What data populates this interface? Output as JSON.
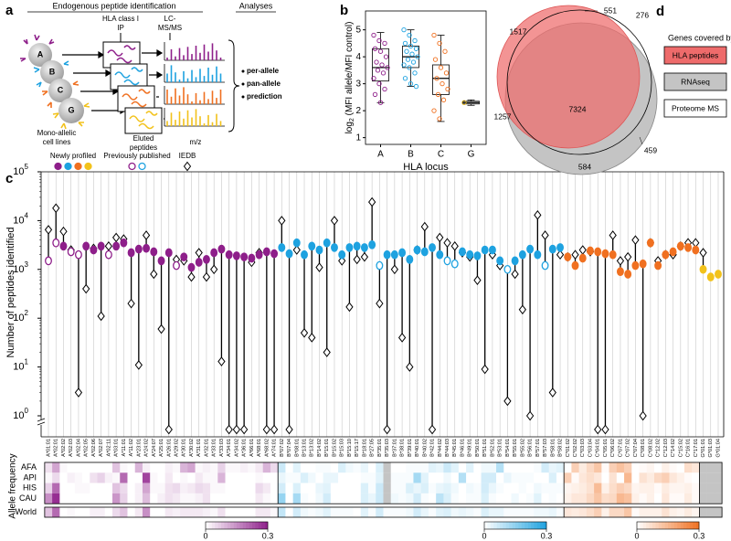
{
  "panel_labels": [
    "a",
    "b",
    "c",
    "d"
  ],
  "diagram": {
    "title": "Endogenous peptide identification",
    "analyses": "Analyses",
    "ip": [
      "HLA class I",
      "IP"
    ],
    "ms": [
      "LC-",
      "MS/MS"
    ],
    "cells": [
      "A",
      "B",
      "C",
      "G"
    ],
    "cell_lines": [
      "Mono-allelic",
      "cell lines"
    ],
    "eluted": [
      "Eluted",
      "peptides"
    ],
    "mz": "m/z",
    "bullets": [
      "per-allele",
      "pan-allele",
      "prediction"
    ]
  },
  "chart_data": [
    {
      "type": "box",
      "x_label": "HLA locus",
      "y_label": {
        "prefix": "log",
        "sub": "2",
        "rest": " (MFI allele/MFI control)"
      },
      "categories": [
        "A",
        "B",
        "C",
        "G"
      ],
      "colors": [
        "#8e1f8a",
        "#1ea2e0",
        "#f07020",
        "#e0b010"
      ],
      "boxes": [
        {
          "min": 2.3,
          "q1": 3.1,
          "median": 3.6,
          "q3": 4.3,
          "max": 4.9
        },
        {
          "min": 2.9,
          "q1": 3.6,
          "median": 4.0,
          "q3": 4.4,
          "max": 5.0
        },
        {
          "min": 1.6,
          "q1": 2.6,
          "median": 3.2,
          "q3": 3.7,
          "max": 4.8
        },
        {
          "min": 2.2,
          "q1": 2.25,
          "median": 2.3,
          "q3": 2.35,
          "max": 2.4
        }
      ],
      "points": [
        [
          4.8,
          4.6,
          4.5,
          4.3,
          4.2,
          4.0,
          3.8,
          3.7,
          3.6,
          3.5,
          3.4,
          3.2,
          3.0,
          2.8,
          2.6,
          2.3
        ],
        [
          5.0,
          4.8,
          4.6,
          4.5,
          4.4,
          4.3,
          4.2,
          4.1,
          4.0,
          3.9,
          3.8,
          3.7,
          3.6,
          3.4,
          3.2,
          3.0,
          2.9
        ],
        [
          4.8,
          4.5,
          4.2,
          3.9,
          3.6,
          3.4,
          3.2,
          3.0,
          2.8,
          2.6,
          2.4,
          2.0,
          1.7
        ],
        [
          2.3
        ]
      ],
      "ylim": [
        0.75,
        5.7
      ],
      "yticks": [
        1,
        2,
        3,
        4,
        5
      ]
    },
    {
      "type": "dot",
      "y_label": "Number of peptides identified",
      "log_scale": true,
      "locus_colors": {
        "A": "#8e1f8a",
        "B": "#1ea2e0",
        "C": "#f07020",
        "G": "#f2c21b"
      },
      "ylim": [
        1,
        100000
      ],
      "yticks": [
        {
          "value": 1,
          "label": "10",
          "exponent": "0"
        },
        {
          "value": 10,
          "label": "10",
          "exponent": "1"
        },
        {
          "value": 100,
          "label": "10",
          "exponent": "2"
        },
        {
          "value": 1000,
          "label": "10",
          "exponent": "3"
        },
        {
          "value": 10000,
          "label": "10",
          "exponent": "4"
        },
        {
          "value": 100000,
          "label": "10",
          "exponent": "5"
        }
      ],
      "categories": [
        "A*01:01",
        "A*02:01",
        "A*02:02",
        "A*02:03",
        "A*02:04",
        "A*02:05",
        "A*02:06",
        "A*02:07",
        "A*02:11",
        "A*03:01",
        "A*11:01",
        "A*11:02",
        "A*23:01",
        "A*24:02",
        "A*24:07",
        "A*25:01",
        "A*26:01",
        "A*29:02",
        "A*30:01",
        "A*30:02",
        "A*31:01",
        "A*32:01",
        "A*33:01",
        "A*33:03",
        "A*34:01",
        "A*34:02",
        "A*36:01",
        "A*66:01",
        "A*68:01",
        "A*68:02",
        "A*74:01",
        "B*07:02",
        "B*07:04",
        "B*08:01",
        "B*13:01",
        "B*13:02",
        "B*14:02",
        "B*15:01",
        "B*15:02",
        "B*15:03",
        "B*15:10",
        "B*15:17",
        "B*18:01",
        "B*27:05",
        "B*35:01",
        "B*35:03",
        "B*37:01",
        "B*38:01",
        "B*39:01",
        "B*40:01",
        "B*40:02",
        "B*42:01",
        "B*44:02",
        "B*44:03",
        "B*45:01",
        "B*46:01",
        "B*49:01",
        "B*50:01",
        "B*51:01",
        "B*52:01",
        "B*53:01",
        "B*54:01",
        "B*55:01",
        "B*55:02",
        "B*56:01",
        "B*57:01",
        "B*57:03",
        "B*58:01",
        "B*58:02",
        "C*01:02",
        "C*02:02",
        "C*03:03",
        "C*03:04",
        "C*04:01",
        "C*05:01",
        "C*06:02",
        "C*07:01",
        "C*07:02",
        "C*07:04",
        "C*08:01",
        "C*08:02",
        "C*12:02",
        "C*12:03",
        "C*14:02",
        "C*15:02",
        "C*16:01",
        "C*17:01",
        "G*01:01",
        "G*01:03",
        "G*01:04"
      ],
      "series": [
        {
          "name": "Newly profiled",
          "values": [
            null,
            null,
            3000,
            null,
            null,
            3000,
            2500,
            3000,
            null,
            3000,
            3500,
            2200,
            2600,
            2700,
            2300,
            1500,
            2200,
            null,
            1800,
            1100,
            1400,
            1600,
            2200,
            2600,
            2000,
            1900,
            1800,
            1700,
            2000,
            2300,
            2100,
            2800,
            2100,
            3500,
            2000,
            3000,
            2500,
            3500,
            2800,
            2000,
            2800,
            3000,
            2800,
            3200,
            null,
            2000,
            2000,
            2200,
            1600,
            2500,
            2300,
            2800,
            2000,
            null,
            null,
            2300,
            2000,
            1900,
            2500,
            2500,
            1500,
            null,
            1500,
            2000,
            2600,
            2000,
            null,
            2600,
            2800,
            1800,
            1200,
            1700,
            2400,
            2300,
            2100,
            2000,
            900,
            800,
            1200,
            1300,
            3500,
            1200,
            2000,
            2300,
            3000,
            2800,
            2500,
            1000,
            700,
            800
          ]
        },
        {
          "name": "Previously published",
          "values": [
            1500,
            3500,
            null,
            2300,
            2000,
            null,
            null,
            null,
            2000,
            null,
            null,
            null,
            null,
            null,
            null,
            null,
            null,
            1200,
            null,
            null,
            null,
            null,
            null,
            null,
            null,
            null,
            null,
            null,
            null,
            null,
            null,
            null,
            null,
            null,
            null,
            null,
            null,
            null,
            null,
            null,
            null,
            null,
            null,
            null,
            1200,
            null,
            null,
            null,
            null,
            null,
            null,
            null,
            null,
            1500,
            1300,
            null,
            null,
            null,
            null,
            null,
            null,
            1000,
            null,
            null,
            null,
            null,
            1200,
            null,
            null,
            null,
            null,
            null,
            null,
            null,
            null,
            null,
            null,
            null,
            null,
            null,
            null,
            null,
            null,
            null,
            null,
            null,
            null,
            null,
            null,
            null
          ]
        },
        {
          "name": "IEDB",
          "values": [
            6500,
            18000,
            6000,
            2500,
            3,
            400,
            2700,
            110,
            3000,
            4500,
            4200,
            200,
            11,
            5000,
            800,
            60,
            0,
            1600,
            1500,
            700,
            2200,
            700,
            1000,
            13,
            0,
            0,
            0,
            1400,
            2200,
            0,
            0,
            10000,
            0,
            2500,
            50,
            40,
            1100,
            20,
            10000,
            1500,
            170,
            1600,
            1800,
            24000,
            200,
            0,
            1000,
            40,
            10,
            2500,
            7500,
            0,
            4500,
            3500,
            3000,
            2200,
            1800,
            600,
            9,
            2000,
            1200,
            2,
            800,
            150,
            1,
            13000,
            5000,
            3,
            2000,
            1800,
            2000,
            2500,
            2300,
            0,
            0,
            5000,
            1500,
            1800,
            4000,
            1,
            3500,
            1500,
            2000,
            2000,
            3000,
            3500,
            3500,
            2200,
            null,
            null
          ]
        }
      ]
    },
    {
      "type": "heatmap",
      "y_label": "Allele frequency",
      "vlim": [
        0,
        0.3
      ],
      "colorbar_ticks": [
        0,
        0.3
      ],
      "colorbars": [
        "A",
        "B",
        "C"
      ],
      "rows": [
        {
          "name": "AFA",
          "values": [
            0.04,
            0.12,
            0.01,
            0,
            0,
            0,
            0,
            0,
            0,
            0.08,
            0.01,
            0,
            0.1,
            0.02,
            0,
            0,
            0.02,
            0.01,
            0.1,
            0.12,
            0.01,
            0.02,
            0.01,
            0.06,
            0.01,
            0.01,
            0.02,
            0.01,
            0.03,
            0.1,
            0.05,
            0.07,
            0,
            0.04,
            0,
            0,
            0.01,
            0.01,
            0,
            0.05,
            0.02,
            0.01,
            0.03,
            0,
            0.05,
            null,
            0,
            0,
            0.01,
            0.01,
            0.01,
            0.04,
            0.03,
            0.07,
            0.04,
            0,
            0.04,
            0,
            0.02,
            0.02,
            0.1,
            0,
            0,
            0,
            0,
            0.01,
            0.06,
            0.03,
            0.04,
            0,
            0.1,
            0.04,
            0.08,
            0.12,
            0.01,
            0.1,
            0.13,
            0.1,
            0,
            0.01,
            0.02,
            0,
            0.03,
            0.01,
            0,
            0.07,
            0.05,
            null,
            null,
            null
          ]
        },
        {
          "name": "API",
          "values": [
            0.01,
            0.05,
            0,
            0.02,
            0.01,
            0,
            0.04,
            0.06,
            0.02,
            0.01,
            0.2,
            0,
            0,
            0.25,
            0.01,
            0,
            0.03,
            0,
            0.01,
            0,
            0.03,
            0.01,
            0.01,
            0.1,
            0,
            0,
            0,
            0,
            0.01,
            0,
            0,
            0.03,
            0.01,
            0.01,
            0.05,
            0.02,
            0,
            0.03,
            0.03,
            0,
            0,
            0,
            0.01,
            0.01,
            0.04,
            null,
            0.01,
            0.01,
            0.01,
            0.12,
            0.04,
            0,
            0,
            0.02,
            0,
            0.1,
            0,
            0,
            0.06,
            0.06,
            0,
            0.03,
            0.01,
            0.01,
            0.01,
            0,
            0,
            0.05,
            0,
            0.1,
            0.01,
            0.05,
            0.07,
            0.05,
            0,
            0.06,
            0,
            0.15,
            0,
            0.06,
            0.04,
            0.08,
            0.1,
            0.05,
            0.03,
            0.01,
            0,
            null,
            null,
            null
          ]
        },
        {
          "name": "HIS",
          "values": [
            0.06,
            0.2,
            0,
            0,
            0.01,
            0.01,
            0,
            0,
            0,
            0.08,
            0.05,
            0,
            0.02,
            0.12,
            0.01,
            0.01,
            0.04,
            0.05,
            0.02,
            0.03,
            0.05,
            0.04,
            0.01,
            0.01,
            0,
            0,
            0,
            0,
            0.05,
            0.03,
            0,
            0.06,
            0,
            0.05,
            0,
            0,
            0.03,
            0.04,
            0,
            0,
            0,
            0,
            0.05,
            0.01,
            0.07,
            null,
            0.01,
            0.01,
            0.05,
            0.03,
            0.05,
            0.01,
            0.03,
            0.04,
            0.02,
            0,
            0.02,
            0.01,
            0.06,
            0.03,
            0.01,
            0,
            0,
            0.01,
            0,
            0.02,
            0.01,
            0.01,
            0.01,
            0.02,
            0.03,
            0.04,
            0.06,
            0.14,
            0.03,
            0.07,
            0.1,
            0.08,
            0.02,
            0.03,
            0.03,
            0.01,
            0.04,
            0.02,
            0.02,
            0.03,
            0.01,
            null,
            null,
            null
          ]
        },
        {
          "name": "CAU",
          "values": [
            0.15,
            0.28,
            0,
            0,
            0,
            0,
            0,
            0,
            0,
            0.14,
            0.06,
            0,
            0.02,
            0.09,
            0,
            0.02,
            0.04,
            0.03,
            0.01,
            0.01,
            0.02,
            0.04,
            0,
            0,
            0,
            0,
            0,
            0,
            0.03,
            0.01,
            0,
            0.14,
            0,
            0.12,
            0.01,
            0,
            0.02,
            0.06,
            0,
            0,
            0,
            0,
            0.05,
            0.03,
            0.07,
            null,
            0.02,
            0.01,
            0.02,
            0.06,
            0.01,
            0,
            0.09,
            0.05,
            0.01,
            0,
            0.01,
            0.01,
            0.05,
            0.01,
            0,
            0,
            0.02,
            0,
            0.01,
            0.04,
            0,
            0.01,
            0,
            0.03,
            0.05,
            0.05,
            0.08,
            0.12,
            0.07,
            0.08,
            0.15,
            0.13,
            0.03,
            0.01,
            0.03,
            0,
            0.05,
            0.01,
            0.01,
            0.04,
            0.01,
            null,
            null,
            null
          ]
        },
        {
          "name": "World",
          "values": [
            0.08,
            0.2,
            0,
            0.01,
            0,
            0,
            0.02,
            0.02,
            0,
            0.05,
            0.08,
            0,
            0.03,
            0.15,
            0,
            0,
            0.03,
            0.02,
            0.03,
            0.03,
            0.03,
            0.02,
            0.01,
            0.04,
            0,
            0,
            0,
            0,
            0.03,
            0.03,
            0.01,
            0.08,
            0,
            0.06,
            0.02,
            0.01,
            0.02,
            0.04,
            0.01,
            0.01,
            0.01,
            0,
            0.04,
            0.01,
            0.06,
            0.01,
            0.01,
            0.01,
            0.02,
            0.06,
            0.03,
            0.01,
            0.04,
            0.05,
            0.02,
            0.03,
            0.02,
            0.01,
            0.05,
            0.03,
            0.03,
            0.01,
            0.01,
            0.01,
            0.01,
            0.02,
            0.02,
            0.03,
            0.01,
            0.05,
            0.04,
            0.05,
            0.07,
            0.1,
            0.03,
            0.08,
            0.08,
            0.12,
            0.01,
            0.03,
            0.03,
            0.03,
            0.06,
            0.03,
            0.02,
            0.04,
            0.02,
            null,
            null,
            null
          ]
        }
      ]
    },
    {
      "type": "venn",
      "legend_title": "Genes covered by:",
      "sets": [
        {
          "name": "HLA peptides",
          "color": "#ee6b6b"
        },
        {
          "name": "RNAseq",
          "color": "#c4c4c4"
        },
        {
          "name": "Proteome MS",
          "color": "#ffffff"
        }
      ],
      "counts": [
        1517,
        551,
        276,
        7324,
        1257,
        459,
        584
      ]
    }
  ]
}
